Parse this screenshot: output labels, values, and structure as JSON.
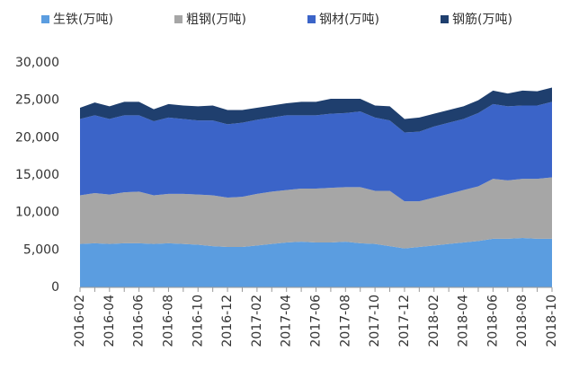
{
  "chart_data": {
    "type": "stacked_area",
    "categories": [
      "2016-02",
      null,
      "2016-04",
      null,
      "2016-06",
      null,
      "2016-08",
      null,
      "2016-10",
      null,
      "2016-12",
      null,
      "2017-02",
      null,
      "2017-04",
      null,
      "2017-06",
      null,
      "2017-08",
      null,
      "2017-10",
      null,
      "2017-12",
      null,
      "2018-02",
      null,
      "2018-04",
      null,
      "2018-06",
      null,
      "2018-08",
      null,
      "2018-10"
    ],
    "series": [
      {
        "name": "生铁(万吨)",
        "color": "#5b9de0",
        "values": [
          5800,
          5900,
          5800,
          5900,
          5900,
          5800,
          5900,
          5800,
          5700,
          5500,
          5400,
          5400,
          5600,
          5800,
          6000,
          6100,
          6000,
          6000,
          6100,
          5900,
          5800,
          5500,
          5200,
          5400,
          5600,
          5800,
          6000,
          6200,
          6500,
          6500,
          6600,
          6500,
          6500
        ]
      },
      {
        "name": "粗钢(万吨)",
        "color": "#a6a6a6",
        "values": [
          6500,
          6700,
          6600,
          6800,
          6900,
          6500,
          6600,
          6700,
          6700,
          6800,
          6600,
          6700,
          6900,
          7000,
          7000,
          7100,
          7200,
          7300,
          7300,
          7500,
          7100,
          7400,
          6300,
          6100,
          6400,
          6700,
          7000,
          7300,
          8000,
          7800,
          7900,
          8000,
          8200
        ]
      },
      {
        "name": "钢材(万吨)",
        "color": "#3b64c8",
        "values": [
          10200,
          10400,
          10100,
          10300,
          10200,
          9900,
          10200,
          10000,
          9900,
          10000,
          9800,
          9900,
          9900,
          9900,
          10000,
          9800,
          9800,
          9900,
          9900,
          10100,
          9800,
          9400,
          9200,
          9300,
          9500,
          9500,
          9500,
          9800,
          10000,
          9900,
          9800,
          9800,
          10100
        ]
      },
      {
        "name": "钢筋(万吨)",
        "color": "#1f3f6e",
        "values": [
          1500,
          1700,
          1700,
          1800,
          1800,
          1600,
          1800,
          1800,
          1900,
          2000,
          1900,
          1700,
          1600,
          1600,
          1600,
          1800,
          1800,
          2000,
          1900,
          1700,
          1600,
          1900,
          1800,
          1900,
          1700,
          1700,
          1700,
          1700,
          1800,
          1700,
          2000,
          1900,
          1900
        ]
      }
    ],
    "ylim": [
      0,
      30000
    ],
    "yticks": [
      0,
      {
        "value": 5000,
        "label": "5,000"
      },
      {
        "value": 10000,
        "label": "10,000"
      },
      {
        "value": 15000,
        "label": "15,000"
      },
      {
        "value": 20000,
        "label": "20,000"
      },
      {
        "value": 25000,
        "label": "25,000"
      },
      {
        "value": 30000,
        "label": "30,000"
      }
    ],
    "legend": "top"
  }
}
